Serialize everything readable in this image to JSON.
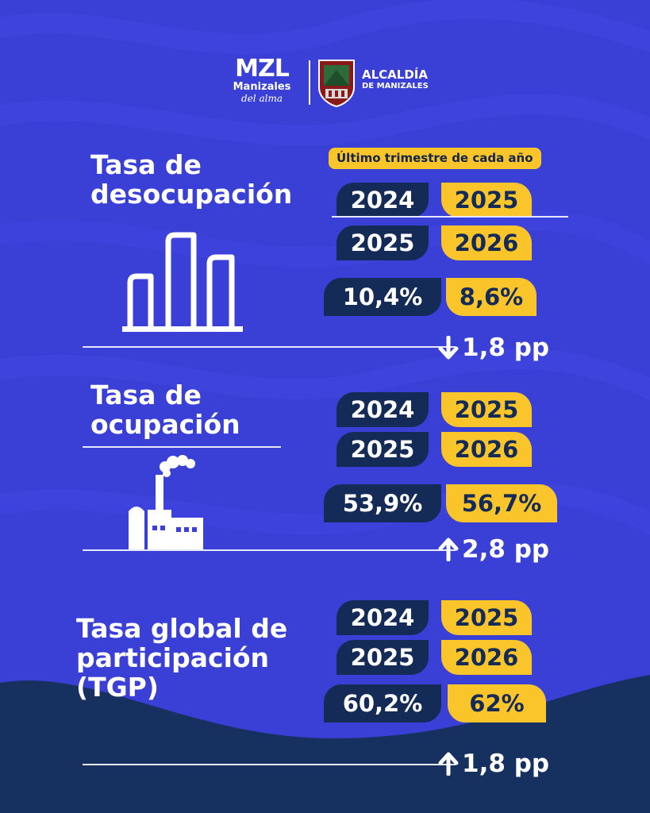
{
  "header": {
    "mzl_logo": "MZL",
    "mzl_name": "Manizales",
    "mzl_tagline": "del alma",
    "alcaldia_title": "ALCALDÍA",
    "alcaldia_subtitle": "DE MANIZALES"
  },
  "period_label": "Último trimestre de cada año",
  "sections": [
    {
      "title_line1": "Tasa de",
      "title_line2": "desocupación",
      "title_line3": "",
      "icon": "bar-chart-icon",
      "year_row1": [
        "2024",
        "2025"
      ],
      "year_row2": [
        "2025",
        "2026"
      ],
      "value_prev": "10,4%",
      "value_curr": "8,6%",
      "change_direction": "down",
      "change_text": "1,8 pp"
    },
    {
      "title_line1": "Tasa de",
      "title_line2": "ocupación",
      "title_line3": "",
      "icon": "factory-icon",
      "year_row1": [
        "2024",
        "2025"
      ],
      "year_row2": [
        "2025",
        "2026"
      ],
      "value_prev": "53,9%",
      "value_curr": "56,7%",
      "change_direction": "up",
      "change_text": "2,8 pp"
    },
    {
      "title_line1": "Tasa global de",
      "title_line2": "participación",
      "title_line3": "(TGP)",
      "icon": "",
      "year_row1": [
        "2024",
        "2025"
      ],
      "year_row2": [
        "2025",
        "2026"
      ],
      "value_prev": "60,2%",
      "value_curr": "62%",
      "change_direction": "up",
      "change_text": "1,8 pp"
    }
  ],
  "colors": {
    "background": "#3a3fd6",
    "navy": "#152b57",
    "yellow": "#f9c52b",
    "white": "#ffffff"
  }
}
